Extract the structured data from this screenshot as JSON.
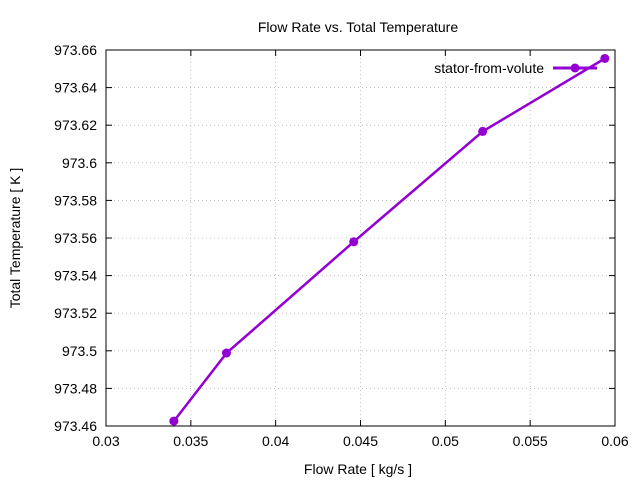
{
  "chart_data": {
    "type": "line",
    "title": "Flow Rate vs. Total Temperature",
    "xlabel": "Flow Rate [ kg/s ]",
    "ylabel": "Total Temperature [ K ]",
    "xlim": [
      0.03,
      0.06
    ],
    "ylim": [
      973.46,
      973.66
    ],
    "xticks": [
      "0.03",
      "0.035",
      "0.04",
      "0.045",
      "0.05",
      "0.055",
      "0.06"
    ],
    "yticks": [
      "973.46",
      "973.48",
      "973.5",
      "973.52",
      "973.54",
      "973.56",
      "973.58",
      "973.6",
      "973.62",
      "973.64",
      "973.66"
    ],
    "grid": true,
    "legend_position": "top-right",
    "series": [
      {
        "name": "stator-from-volute",
        "color": "#9400d3",
        "x": [
          0.034,
          0.0371,
          0.0446,
          0.0522,
          0.0594
        ],
        "y": [
          973.4626,
          973.4988,
          973.558,
          973.6167,
          973.6555
        ]
      }
    ]
  }
}
